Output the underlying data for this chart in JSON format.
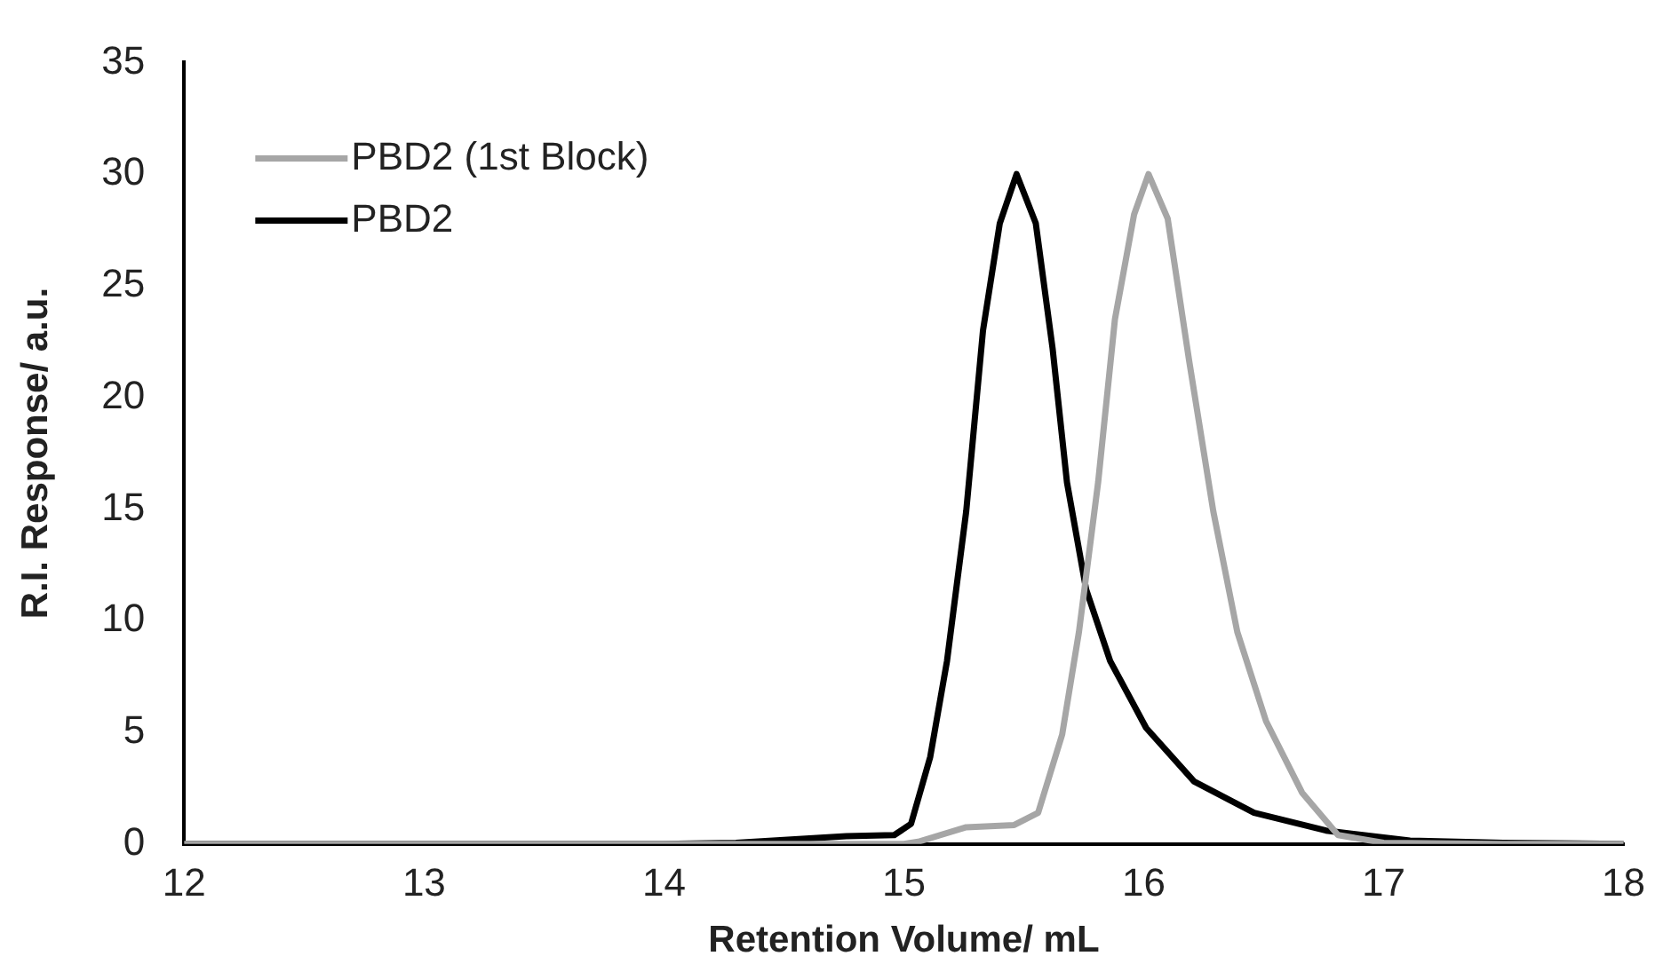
{
  "chart_data": {
    "type": "line",
    "xlabel": "Retention Volume/ mL",
    "ylabel": "R.I. Response/ a.u.",
    "xlim": [
      12,
      18
    ],
    "xticks": [
      12,
      13,
      14,
      15,
      16,
      17,
      18
    ],
    "ylim": [
      0,
      35
    ],
    "yticks": [
      0,
      5,
      10,
      15,
      20,
      25,
      30,
      35
    ],
    "grid": false,
    "legend": "top left",
    "marker": "none",
    "line_style": "solid",
    "series": [
      {
        "name": "PBD2 (1st Block)",
        "color": "#a6a6a6",
        "x": [
          12,
          13,
          14,
          15,
          15.06,
          15.26,
          15.46,
          15.56,
          15.66,
          15.73,
          15.81,
          15.88,
          15.96,
          16.02,
          16.1,
          16.19,
          16.29,
          16.39,
          16.51,
          16.66,
          16.81,
          17,
          17.5,
          18
        ],
        "values": [
          0,
          0,
          0,
          0,
          0.1,
          0.75,
          0.85,
          1.4,
          4.9,
          9.5,
          16.2,
          23.5,
          28.2,
          30,
          28,
          21.6,
          14.9,
          9.5,
          5.5,
          2.3,
          0.4,
          0.05,
          0,
          0
        ]
      },
      {
        "name": "PBD2",
        "color": "#000000",
        "x": [
          12,
          13,
          14,
          14.3,
          14.76,
          14.96,
          15.03,
          15.11,
          15.18,
          15.26,
          15.33,
          15.4,
          15.47,
          15.55,
          15.62,
          15.68,
          15.76,
          15.86,
          16.01,
          16.21,
          16.46,
          16.76,
          17.11,
          17.5,
          18
        ],
        "values": [
          0,
          0,
          0,
          0.05,
          0.35,
          0.4,
          0.9,
          3.9,
          8.2,
          14.9,
          23,
          27.8,
          30,
          27.8,
          22.2,
          16.2,
          11.4,
          8.2,
          5.2,
          2.8,
          1.4,
          0.6,
          0.15,
          0.05,
          0
        ]
      }
    ]
  }
}
